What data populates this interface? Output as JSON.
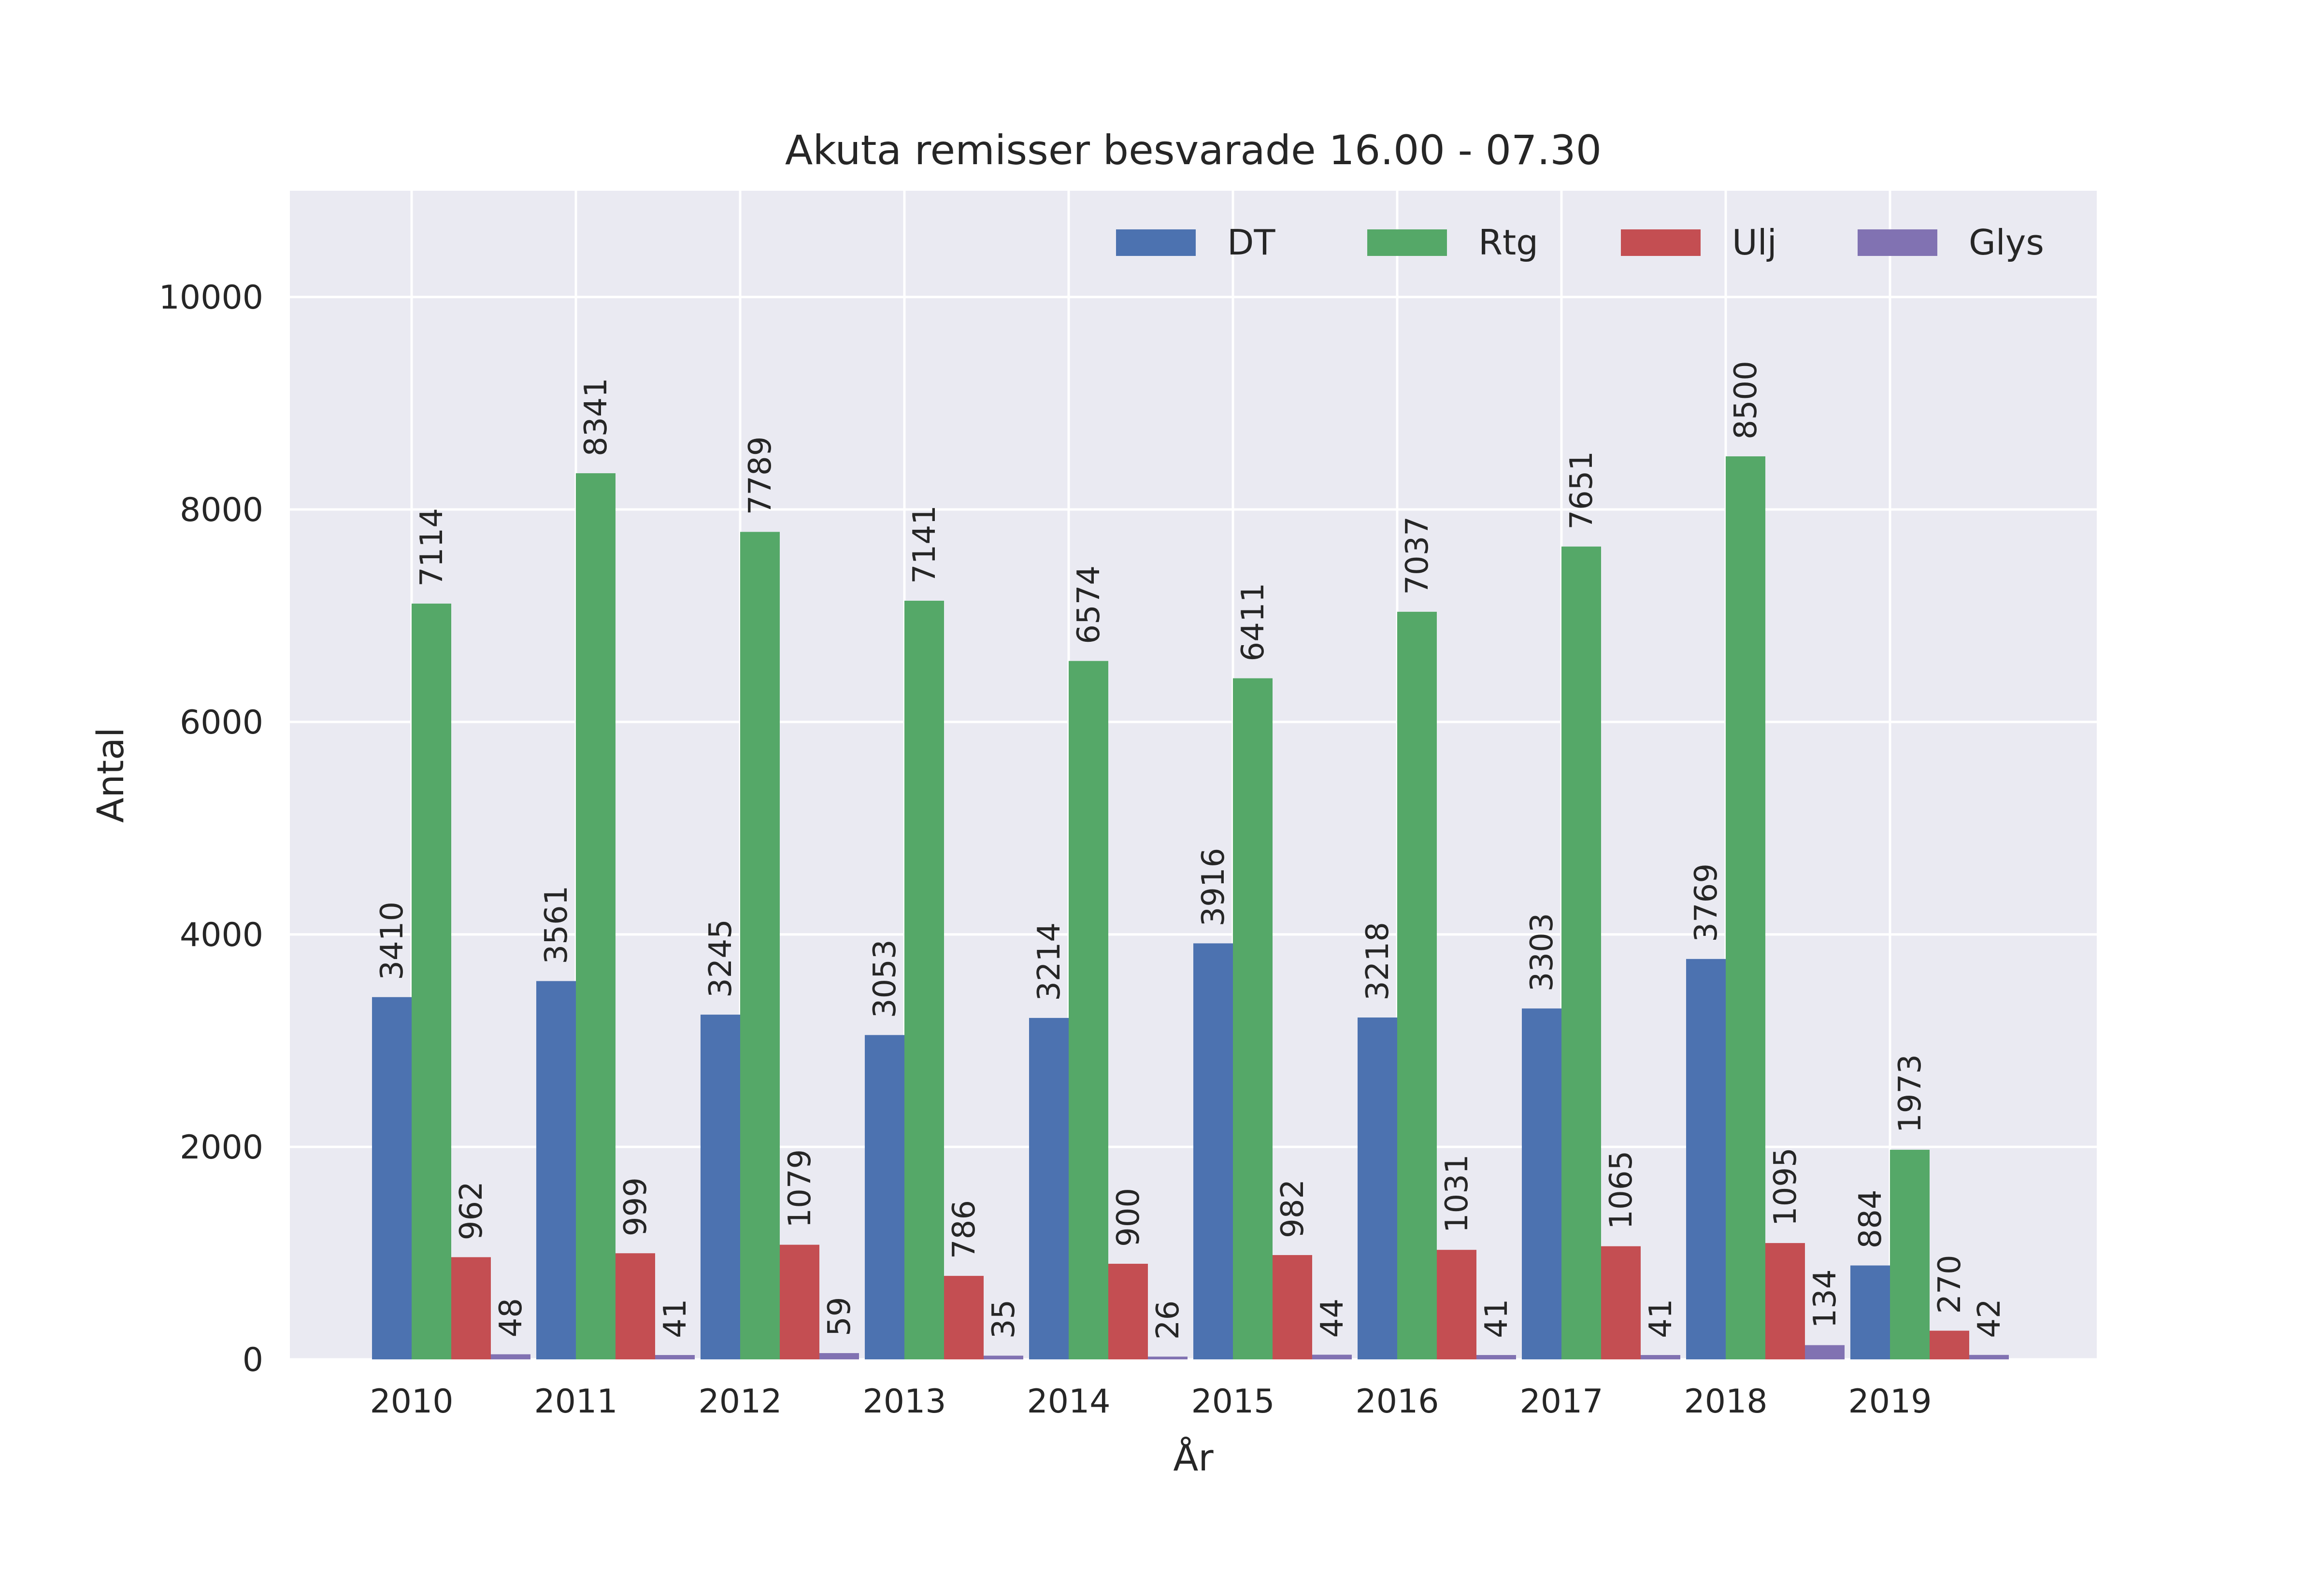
{
  "chart_data": {
    "type": "bar",
    "title": "Akuta remisser besvarade 16.00 - 07.30",
    "xlabel": "År",
    "ylabel": "Antal",
    "categories": [
      "2010",
      "2011",
      "2012",
      "2013",
      "2014",
      "2015",
      "2016",
      "2017",
      "2018",
      "2019"
    ],
    "series": [
      {
        "name": "DT",
        "color": "#4c72b0",
        "values": [
          3410,
          3561,
          3245,
          3053,
          3214,
          3916,
          3218,
          3303,
          3769,
          884
        ]
      },
      {
        "name": "Rtg",
        "color": "#55a868",
        "values": [
          7114,
          8341,
          7789,
          7141,
          6574,
          6411,
          7037,
          7651,
          8500,
          1973
        ]
      },
      {
        "name": "Ulj",
        "color": "#c44e52",
        "values": [
          962,
          999,
          1079,
          786,
          900,
          982,
          1031,
          1065,
          1095,
          270
        ]
      },
      {
        "name": "Glys",
        "color": "#8172b2",
        "values": [
          48,
          41,
          59,
          35,
          26,
          44,
          41,
          41,
          134,
          42
        ]
      }
    ],
    "ylim": [
      0,
      11000
    ],
    "yticks": [
      "0",
      "2000",
      "4000",
      "6000",
      "8000",
      "10000"
    ],
    "grid": true,
    "legend_position": "top-right",
    "background_color": "#eaeaf2",
    "grid_color": "#ffffff"
  }
}
